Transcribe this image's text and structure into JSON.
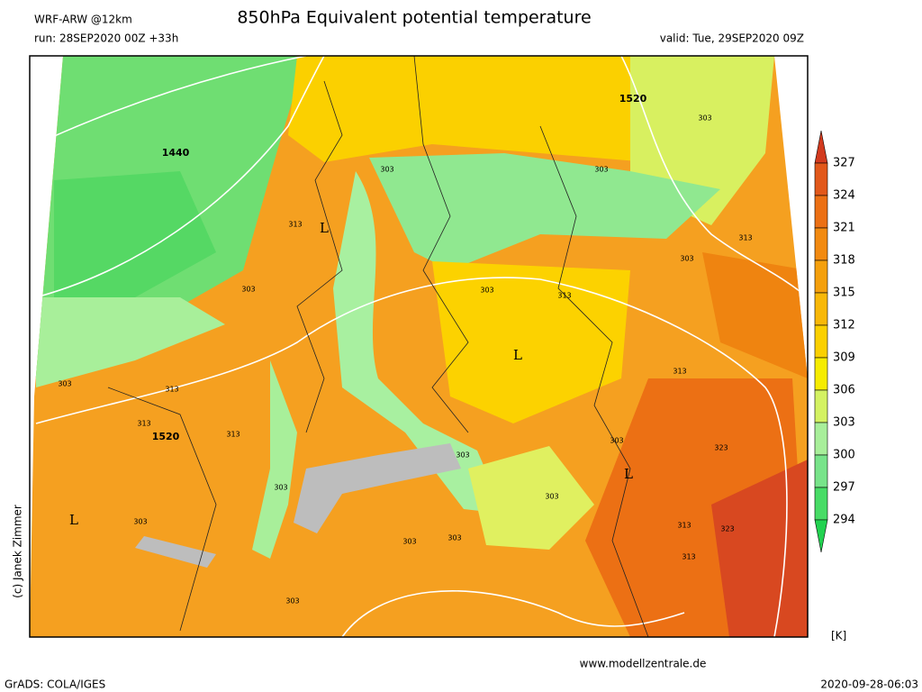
{
  "header": {
    "model": "WRF-ARW @12km",
    "title": "850hPa Equivalent potential temperature",
    "run": "run: 28SEP2020 00Z +33h",
    "valid": "valid: Tue, 29SEP2020 09Z"
  },
  "colorbar": {
    "levels": [
      327,
      324,
      321,
      318,
      315,
      312,
      309,
      306,
      303,
      300,
      297,
      294
    ],
    "colors": [
      "#d23a1e",
      "#e2581a",
      "#ec7014",
      "#f28a10",
      "#f5a00c",
      "#f8b808",
      "#fbd000",
      "#f6ec00",
      "#d4f262",
      "#a8ef9a",
      "#78e48a",
      "#48dc66",
      "#22d250"
    ],
    "unit": "[K]"
  },
  "map": {
    "labels": [
      "L",
      "L",
      "L",
      "L",
      "1440",
      "1520",
      "1520",
      "303",
      "303",
      "303",
      "303",
      "303",
      "303",
      "303",
      "303",
      "303",
      "303",
      "303",
      "303",
      "303",
      "303",
      "303",
      "313",
      "313",
      "313",
      "313",
      "313",
      "313",
      "313",
      "313",
      "313",
      "323",
      "323"
    ]
  },
  "footer": {
    "website": "www.modellzentrale.de",
    "software": "GrADS: COLA/IGES",
    "timestamp": "2020-09-28-06:03",
    "credit": "(c) Janek Zimmer"
  }
}
